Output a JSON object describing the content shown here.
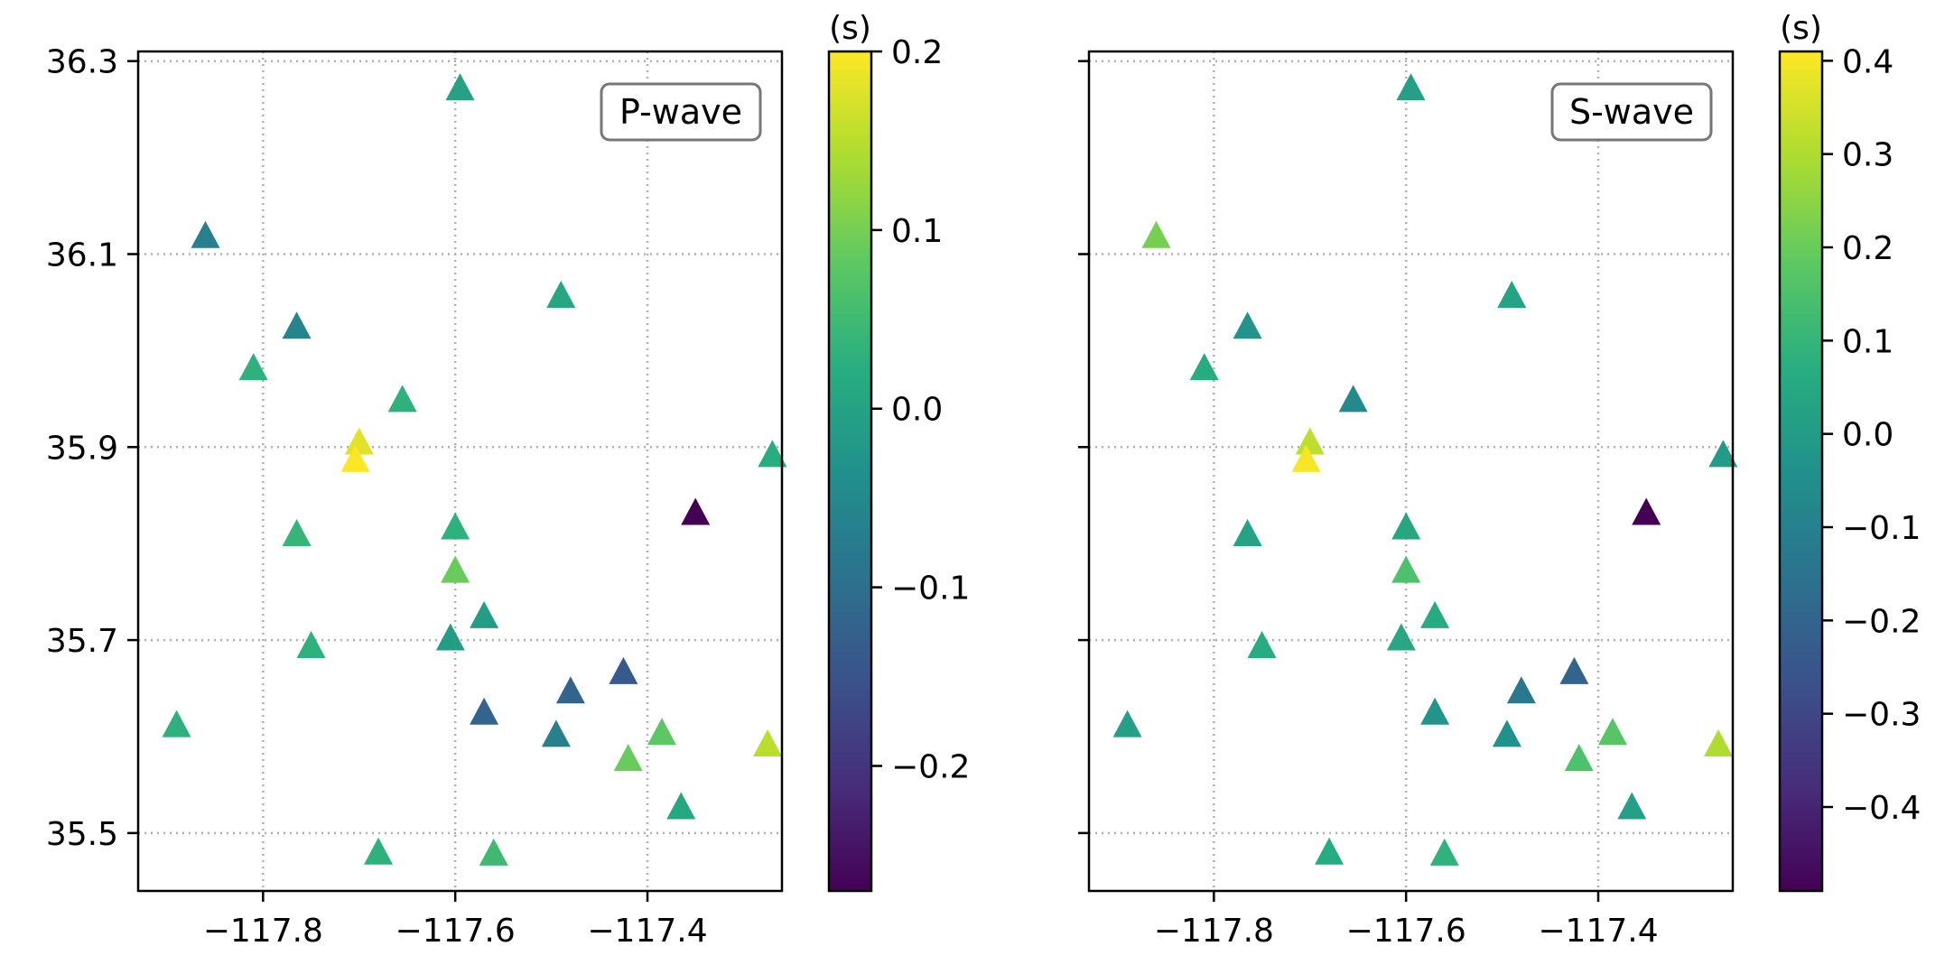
{
  "chart_data": [
    {
      "type": "scatter",
      "title": "",
      "xlabel": "",
      "ylabel": "",
      "legend_label": "P-wave",
      "legend_placement": "top-right",
      "grid": true,
      "xlim": [
        -117.93,
        -117.26
      ],
      "ylim": [
        35.44,
        36.31
      ],
      "xticks": [
        -117.8,
        -117.6,
        -117.4
      ],
      "xtick_labels": [
        "−117.8",
        "−117.6",
        "−117.4"
      ],
      "yticks": [
        35.5,
        35.7,
        35.9,
        36.1,
        36.3
      ],
      "ytick_labels": [
        "35.5",
        "35.7",
        "35.9",
        "36.1",
        "36.3"
      ],
      "marker": "triangle",
      "colormap": "viridis",
      "colorbar": {
        "unit_label": "(s)",
        "range": [
          -0.27,
          0.2
        ],
        "ticks": [
          -0.2,
          -0.1,
          0.0,
          0.1,
          0.2
        ],
        "tick_labels": [
          "−0.2",
          "−0.1",
          "0.0",
          "0.1",
          "0.2"
        ]
      },
      "points": [
        {
          "lon": -117.595,
          "lat": 36.27,
          "value": 0.0
        },
        {
          "lon": -117.86,
          "lat": 36.117,
          "value": -0.07
        },
        {
          "lon": -117.49,
          "lat": 36.055,
          "value": 0.01
        },
        {
          "lon": -117.765,
          "lat": 36.023,
          "value": -0.06
        },
        {
          "lon": -117.81,
          "lat": 35.98,
          "value": 0.03
        },
        {
          "lon": -117.655,
          "lat": 35.947,
          "value": 0.03
        },
        {
          "lon": -117.7,
          "lat": 35.903,
          "value": 0.18
        },
        {
          "lon": -117.704,
          "lat": 35.885,
          "value": 0.2
        },
        {
          "lon": -117.27,
          "lat": 35.89,
          "value": 0.02
        },
        {
          "lon": -117.35,
          "lat": 35.83,
          "value": -0.27
        },
        {
          "lon": -117.765,
          "lat": 35.808,
          "value": 0.04
        },
        {
          "lon": -117.6,
          "lat": 35.815,
          "value": 0.03
        },
        {
          "lon": -117.6,
          "lat": 35.77,
          "value": 0.09
        },
        {
          "lon": -117.57,
          "lat": 35.723,
          "value": -0.01
        },
        {
          "lon": -117.75,
          "lat": 35.692,
          "value": 0.03
        },
        {
          "lon": -117.605,
          "lat": 35.7,
          "value": -0.01
        },
        {
          "lon": -117.425,
          "lat": 35.665,
          "value": -0.14
        },
        {
          "lon": -117.48,
          "lat": 35.645,
          "value": -0.12
        },
        {
          "lon": -117.57,
          "lat": 35.623,
          "value": -0.12
        },
        {
          "lon": -117.89,
          "lat": 35.61,
          "value": 0.03
        },
        {
          "lon": -117.495,
          "lat": 35.6,
          "value": -0.07
        },
        {
          "lon": -117.385,
          "lat": 35.602,
          "value": 0.08
        },
        {
          "lon": -117.275,
          "lat": 35.59,
          "value": 0.15
        },
        {
          "lon": -117.42,
          "lat": 35.575,
          "value": 0.09
        },
        {
          "lon": -117.365,
          "lat": 35.525,
          "value": 0.01
        },
        {
          "lon": -117.68,
          "lat": 35.478,
          "value": 0.03
        },
        {
          "lon": -117.56,
          "lat": 35.477,
          "value": 0.05
        }
      ]
    },
    {
      "type": "scatter",
      "title": "",
      "xlabel": "",
      "ylabel": "",
      "legend_label": "S-wave",
      "legend_placement": "top-right",
      "grid": true,
      "xlim": [
        -117.93,
        -117.26
      ],
      "ylim": [
        35.44,
        36.31
      ],
      "xticks": [
        -117.8,
        -117.6,
        -117.4
      ],
      "xtick_labels": [
        "−117.8",
        "−117.6",
        "−117.4"
      ],
      "yticks": [
        35.5,
        35.7,
        35.9,
        36.1,
        36.3
      ],
      "ytick_labels": [
        "",
        "",
        "",
        "",
        ""
      ],
      "marker": "triangle",
      "colormap": "viridis",
      "colorbar": {
        "unit_label": "(s)",
        "range": [
          -0.49,
          0.41
        ],
        "ticks": [
          -0.4,
          -0.3,
          -0.2,
          -0.1,
          0.0,
          0.1,
          0.2,
          0.3,
          0.4
        ],
        "tick_labels": [
          "−0.4",
          "−0.3",
          "−0.2",
          "−0.1",
          "0.0",
          "0.1",
          "0.2",
          "0.3",
          "0.4"
        ]
      },
      "points": [
        {
          "lon": -117.595,
          "lat": 36.27,
          "value": 0.02
        },
        {
          "lon": -117.86,
          "lat": 36.117,
          "value": 0.22
        },
        {
          "lon": -117.49,
          "lat": 36.055,
          "value": 0.03
        },
        {
          "lon": -117.765,
          "lat": 36.023,
          "value": -0.03
        },
        {
          "lon": -117.81,
          "lat": 35.98,
          "value": 0.06
        },
        {
          "lon": -117.655,
          "lat": 35.947,
          "value": -0.07
        },
        {
          "lon": -117.7,
          "lat": 35.903,
          "value": 0.32
        },
        {
          "lon": -117.704,
          "lat": 35.885,
          "value": 0.4
        },
        {
          "lon": -117.27,
          "lat": 35.89,
          "value": 0.0
        },
        {
          "lon": -117.35,
          "lat": 35.83,
          "value": -0.49
        },
        {
          "lon": -117.765,
          "lat": 35.808,
          "value": 0.03
        },
        {
          "lon": -117.6,
          "lat": 35.815,
          "value": 0.04
        },
        {
          "lon": -117.6,
          "lat": 35.77,
          "value": 0.15
        },
        {
          "lon": -117.57,
          "lat": 35.723,
          "value": 0.06
        },
        {
          "lon": -117.75,
          "lat": 35.692,
          "value": 0.06
        },
        {
          "lon": -117.605,
          "lat": 35.7,
          "value": 0.05
        },
        {
          "lon": -117.425,
          "lat": 35.665,
          "value": -0.2
        },
        {
          "lon": -117.48,
          "lat": 35.645,
          "value": -0.13
        },
        {
          "lon": -117.57,
          "lat": 35.623,
          "value": -0.03
        },
        {
          "lon": -117.89,
          "lat": 35.61,
          "value": 0.02
        },
        {
          "lon": -117.495,
          "lat": 35.6,
          "value": -0.04
        },
        {
          "lon": -117.385,
          "lat": 35.602,
          "value": 0.17
        },
        {
          "lon": -117.275,
          "lat": 35.59,
          "value": 0.3
        },
        {
          "lon": -117.42,
          "lat": 35.575,
          "value": 0.15
        },
        {
          "lon": -117.365,
          "lat": 35.525,
          "value": 0.02
        },
        {
          "lon": -117.68,
          "lat": 35.478,
          "value": 0.06
        },
        {
          "lon": -117.56,
          "lat": 35.477,
          "value": 0.09
        }
      ]
    }
  ]
}
